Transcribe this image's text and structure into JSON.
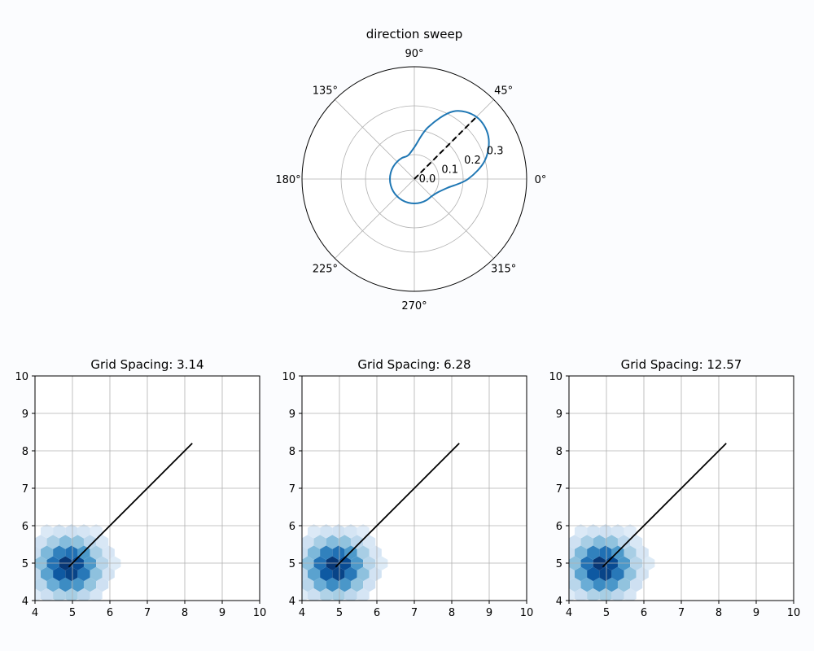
{
  "chart_data": [
    {
      "type": "line",
      "projection": "polar",
      "title": "direction sweep",
      "theta_tick_labels": [
        "0°",
        "45°",
        "90°",
        "135°",
        "180°",
        "225°",
        "270°",
        "315°"
      ],
      "theta_ticks_deg": [
        0,
        45,
        90,
        135,
        180,
        225,
        270,
        315
      ],
      "r_tick_labels": [
        "0.0",
        "0.1",
        "0.2",
        "0.3"
      ],
      "r_ticks": [
        0.0,
        0.1,
        0.2,
        0.3
      ],
      "rlim": [
        0,
        0.46
      ],
      "grid": true,
      "series": [
        {
          "color": "#1f77b4",
          "style": "solid",
          "theta_deg": [
            0,
            15,
            30,
            45,
            60,
            75,
            90,
            105,
            120,
            135,
            150,
            165,
            180,
            195,
            210,
            225,
            240,
            255,
            270,
            285,
            300,
            315,
            330,
            345,
            360
          ],
          "r": [
            0.22,
            0.3,
            0.35,
            0.36,
            0.32,
            0.22,
            0.13,
            0.1,
            0.1,
            0.1,
            0.1,
            0.1,
            0.1,
            0.1,
            0.1,
            0.1,
            0.1,
            0.1,
            0.1,
            0.1,
            0.1,
            0.1,
            0.11,
            0.14,
            0.22
          ]
        },
        {
          "color": "#000000",
          "style": "dashed",
          "theta_deg": [
            45,
            45
          ],
          "r": [
            0.0,
            0.36
          ]
        }
      ]
    },
    {
      "type": "heatmap",
      "title": "Grid Spacing: 3.14",
      "xlim": [
        4,
        10
      ],
      "ylim": [
        4,
        10
      ],
      "x_tick_labels": [
        "4",
        "5",
        "6",
        "7",
        "8",
        "9",
        "10"
      ],
      "y_tick_labels": [
        "4",
        "5",
        "6",
        "7",
        "8",
        "9",
        "10"
      ],
      "grid": true,
      "colormap": "Blues",
      "density_center": [
        4.9,
        4.9
      ],
      "density_spread": [
        0.55,
        0.5
      ],
      "line": {
        "color": "#000000",
        "x": [
          4.9,
          8.2
        ],
        "y": [
          4.9,
          8.2
        ]
      }
    },
    {
      "type": "heatmap",
      "title": "Grid Spacing: 6.28",
      "xlim": [
        4,
        10
      ],
      "ylim": [
        4,
        10
      ],
      "x_tick_labels": [
        "4",
        "5",
        "6",
        "7",
        "8",
        "9",
        "10"
      ],
      "y_tick_labels": [
        "4",
        "5",
        "6",
        "7",
        "8",
        "9",
        "10"
      ],
      "grid": true,
      "colormap": "Blues",
      "density_center": [
        4.9,
        4.9
      ],
      "density_spread": [
        0.55,
        0.5
      ],
      "line": {
        "color": "#000000",
        "x": [
          4.9,
          8.2
        ],
        "y": [
          4.9,
          8.2
        ]
      }
    },
    {
      "type": "heatmap",
      "title": "Grid Spacing: 12.57",
      "xlim": [
        4,
        10
      ],
      "ylim": [
        4,
        10
      ],
      "x_tick_labels": [
        "4",
        "5",
        "6",
        "7",
        "8",
        "9",
        "10"
      ],
      "y_tick_labels": [
        "4",
        "5",
        "6",
        "7",
        "8",
        "9",
        "10"
      ],
      "grid": true,
      "colormap": "Blues",
      "density_center": [
        4.9,
        4.9
      ],
      "density_spread": [
        0.55,
        0.5
      ],
      "line": {
        "color": "#000000",
        "x": [
          4.9,
          8.2
        ],
        "y": [
          4.9,
          8.2
        ]
      }
    }
  ]
}
